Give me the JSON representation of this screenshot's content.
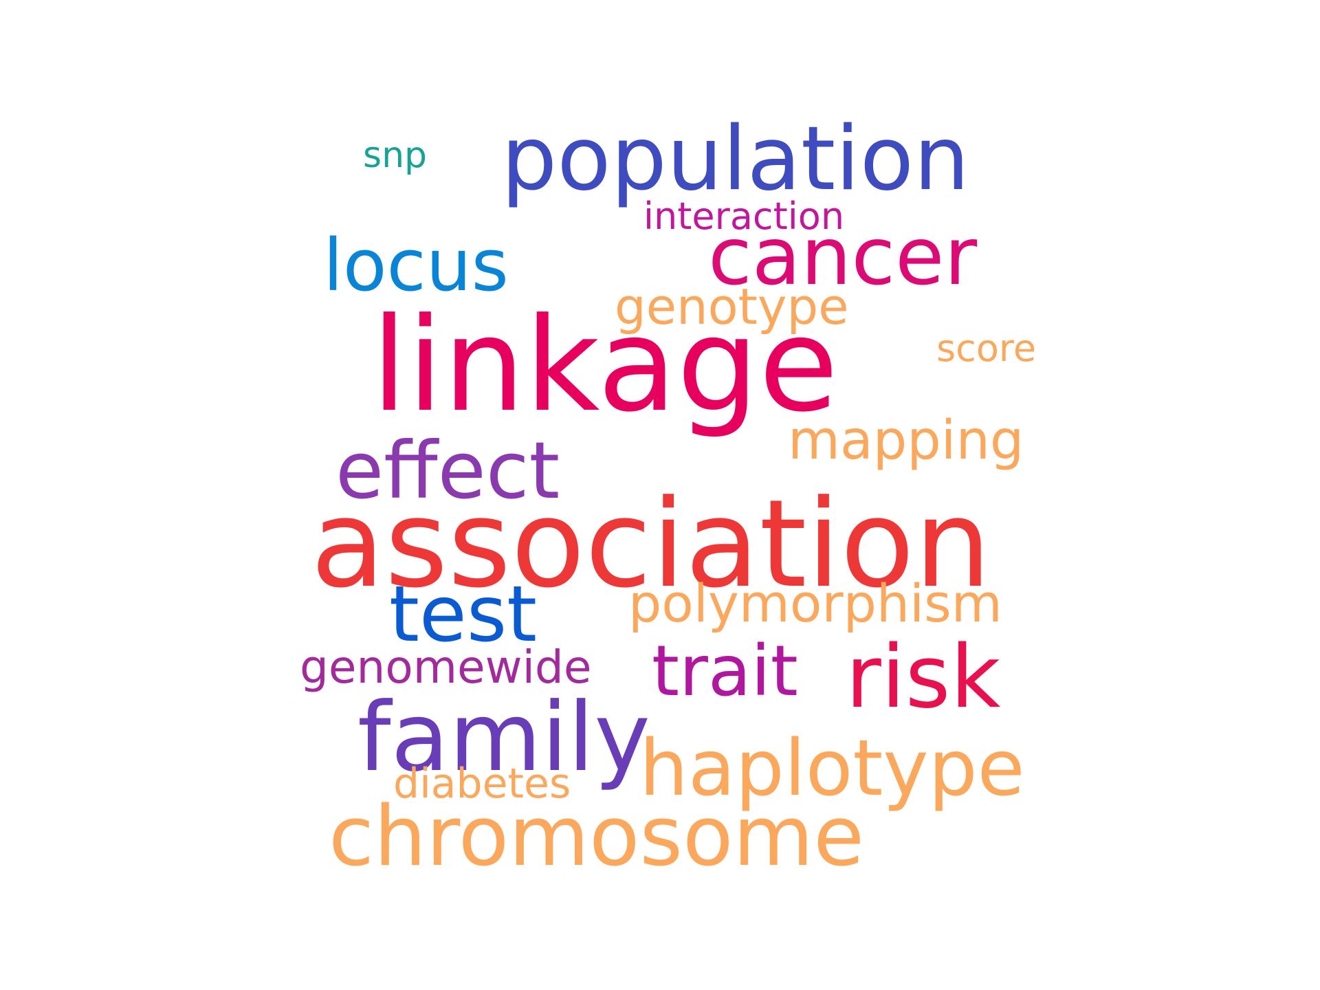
{
  "word_cloud": {
    "words": [
      {
        "text": "snp",
        "color": "#16A394"
      },
      {
        "text": "population",
        "color": "#3F4CC0"
      },
      {
        "text": "interaction",
        "color": "#C2179C"
      },
      {
        "text": "cancer",
        "color": "#DC0A74"
      },
      {
        "text": "locus",
        "color": "#0A84D6"
      },
      {
        "text": "genotype",
        "color": "#FBA75C"
      },
      {
        "text": "score",
        "color": "#FBA75C"
      },
      {
        "text": "linkage",
        "color": "#E8005E"
      },
      {
        "text": "mapping",
        "color": "#FBA75C"
      },
      {
        "text": "effect",
        "color": "#8A3AAE"
      },
      {
        "text": "association",
        "color": "#EE3838"
      },
      {
        "text": "test",
        "color": "#0A5AD2"
      },
      {
        "text": "polymorphism",
        "color": "#FBA75C"
      },
      {
        "text": "genomewide",
        "color": "#A22A9C"
      },
      {
        "text": "trait",
        "color": "#B0169E"
      },
      {
        "text": "risk",
        "color": "#E8104E"
      },
      {
        "text": "family",
        "color": "#6A3DB8"
      },
      {
        "text": "haplotype",
        "color": "#FBA75C"
      },
      {
        "text": "diabetes",
        "color": "#FBA75C"
      },
      {
        "text": "chromosome",
        "color": "#FBA75C"
      }
    ]
  }
}
